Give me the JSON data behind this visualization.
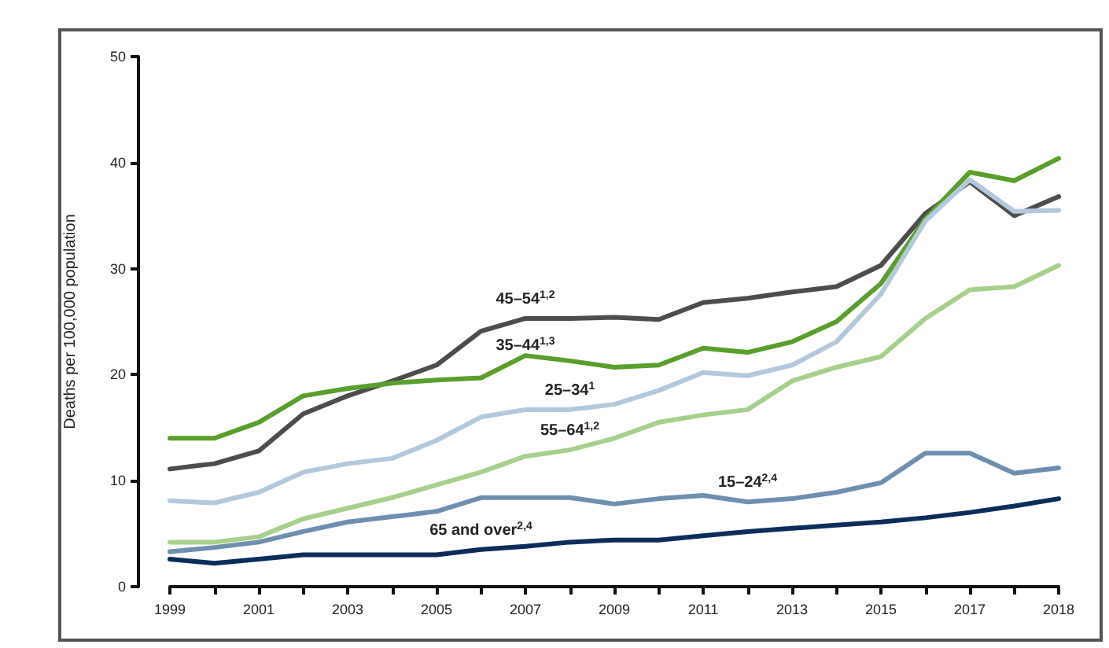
{
  "chart_data": {
    "type": "line",
    "ylabel": "Deaths per 100,000 population",
    "categories": [
      "1999",
      null,
      "2001",
      null,
      "2003",
      null,
      "2005",
      null,
      "2007",
      null,
      "2009",
      null,
      "2011",
      null,
      "2013",
      null,
      "2015",
      null,
      "2017",
      null,
      "2018"
    ],
    "ylim": [
      0,
      50
    ],
    "yticks": [
      0,
      10,
      20,
      30,
      40,
      50
    ],
    "grid": false,
    "legend": false,
    "series": [
      {
        "name": "45–54$^{1,2}$",
        "color": "#4d4d4d",
        "values": [
          11.1,
          11.6,
          12.8,
          16.3,
          18.0,
          19.4,
          20.9,
          24.1,
          25.3,
          25.3,
          25.4,
          25.2,
          26.8,
          27.2,
          27.8,
          28.3,
          30.3,
          35.2,
          38.2,
          35.0,
          36.8
        ]
      },
      {
        "name": "35–44$^{1,3}$",
        "color": "#5a9e2b",
        "values": [
          14.0,
          14.0,
          15.5,
          18.0,
          18.7,
          19.2,
          19.5,
          19.7,
          21.8,
          21.3,
          20.7,
          20.9,
          22.5,
          22.1,
          23.1,
          25.0,
          28.6,
          34.7,
          39.1,
          38.3,
          40.4
        ]
      },
      {
        "name": "25–34$^{1}$",
        "color": "#b4c8dc",
        "values": [
          8.1,
          7.9,
          8.9,
          10.8,
          11.6,
          12.1,
          13.8,
          16.0,
          16.7,
          16.7,
          17.2,
          18.5,
          20.2,
          19.9,
          20.9,
          23.1,
          27.6,
          34.5,
          38.4,
          35.4,
          35.5
        ]
      },
      {
        "name": "55–64$^{1,2}$",
        "color": "#a8d08d",
        "values": [
          4.2,
          4.2,
          4.7,
          6.4,
          7.4,
          8.4,
          9.6,
          10.8,
          12.3,
          12.9,
          14.0,
          15.5,
          16.2,
          16.7,
          19.4,
          20.7,
          21.7,
          25.3,
          28.0,
          28.3,
          30.3
        ]
      },
      {
        "name": "15–24$^{2,4}$",
        "color": "#6f8fb0",
        "values": [
          3.3,
          3.7,
          4.2,
          5.2,
          6.1,
          6.6,
          7.1,
          8.4,
          8.4,
          8.4,
          7.8,
          8.3,
          8.6,
          8.0,
          8.3,
          8.9,
          9.8,
          12.6,
          12.6,
          10.7,
          11.2
        ]
      },
      {
        "name": "65 and over$^{2,4}$",
        "color": "#0c2d5a",
        "values": [
          2.6,
          2.2,
          2.6,
          3.0,
          3.0,
          3.0,
          3.0,
          3.5,
          3.8,
          4.2,
          4.4,
          4.4,
          4.8,
          5.2,
          5.5,
          5.8,
          6.1,
          6.5,
          7.0,
          7.6,
          8.3
        ]
      }
    ]
  }
}
